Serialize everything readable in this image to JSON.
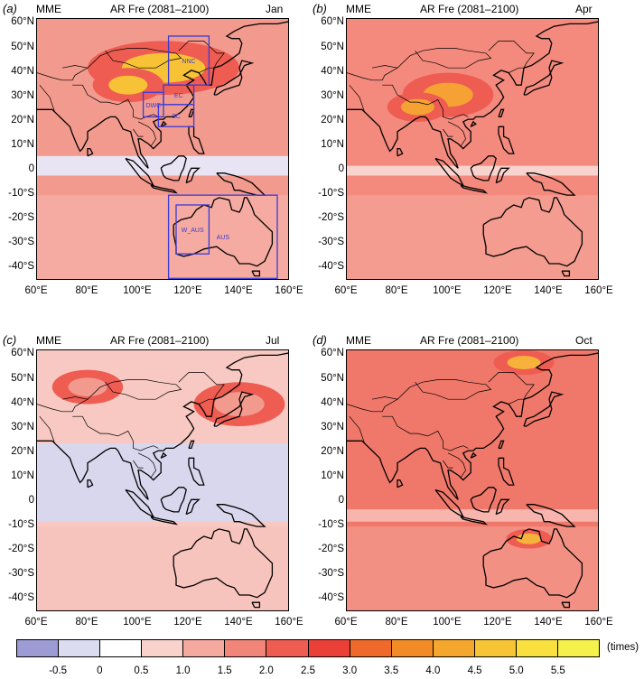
{
  "panels": [
    {
      "label": "(a)",
      "model": "MME",
      "title": "AR Fre (2081–2100)",
      "month": "Jan",
      "fill": "#f39a8e",
      "hot": "#f7c235",
      "band": "#e9e4f3",
      "regions": [
        "NNC",
        "EC",
        "DWC",
        "SC",
        "W_AUS",
        "AUS"
      ]
    },
    {
      "label": "(b)",
      "model": "MME",
      "title": "AR Fre (2081–2100)",
      "month": "Apr",
      "fill": "#f38a7d",
      "hot": "#f5a133",
      "band": "#f9d4cf"
    },
    {
      "label": "(c)",
      "model": "MME",
      "title": "AR Fre (2081–2100)",
      "month": "Jul",
      "fill": "#f8c8c2",
      "hot": "#f39a8e",
      "band": "#d8d7ee"
    },
    {
      "label": "(d)",
      "model": "MME",
      "title": "AR Fre (2081–2100)",
      "month": "Oct",
      "fill": "#f0786a",
      "hot": "#f6b23a",
      "band": "#f7b5ad"
    }
  ],
  "lat_labels": [
    "60°N",
    "50°N",
    "40°N",
    "30°N",
    "20°N",
    "10°N",
    "0",
    "-10°S",
    "-20°S",
    "-30°S",
    "-40°S"
  ],
  "lon_labels": [
    "60°E",
    "80°E",
    "100°E",
    "120°E",
    "140°E",
    "160°E"
  ],
  "colorbar": {
    "ticks": [
      "-0.5",
      "0",
      "0.5",
      "1.0",
      "1.5",
      "2.0",
      "2.5",
      "3.0",
      "3.5",
      "4.0",
      "4.5",
      "5.0",
      "5.5"
    ],
    "unit": "(times)",
    "colors": [
      "#9d9bd3",
      "#dcdcf0",
      "#ffffff",
      "#f9d2cc",
      "#f5a99f",
      "#f1857a",
      "#ee5c52",
      "#ea4038",
      "#ef6a2a",
      "#f28b26",
      "#f5a62c",
      "#f7c436",
      "#f9e03f",
      "#f6f04a"
    ]
  }
}
